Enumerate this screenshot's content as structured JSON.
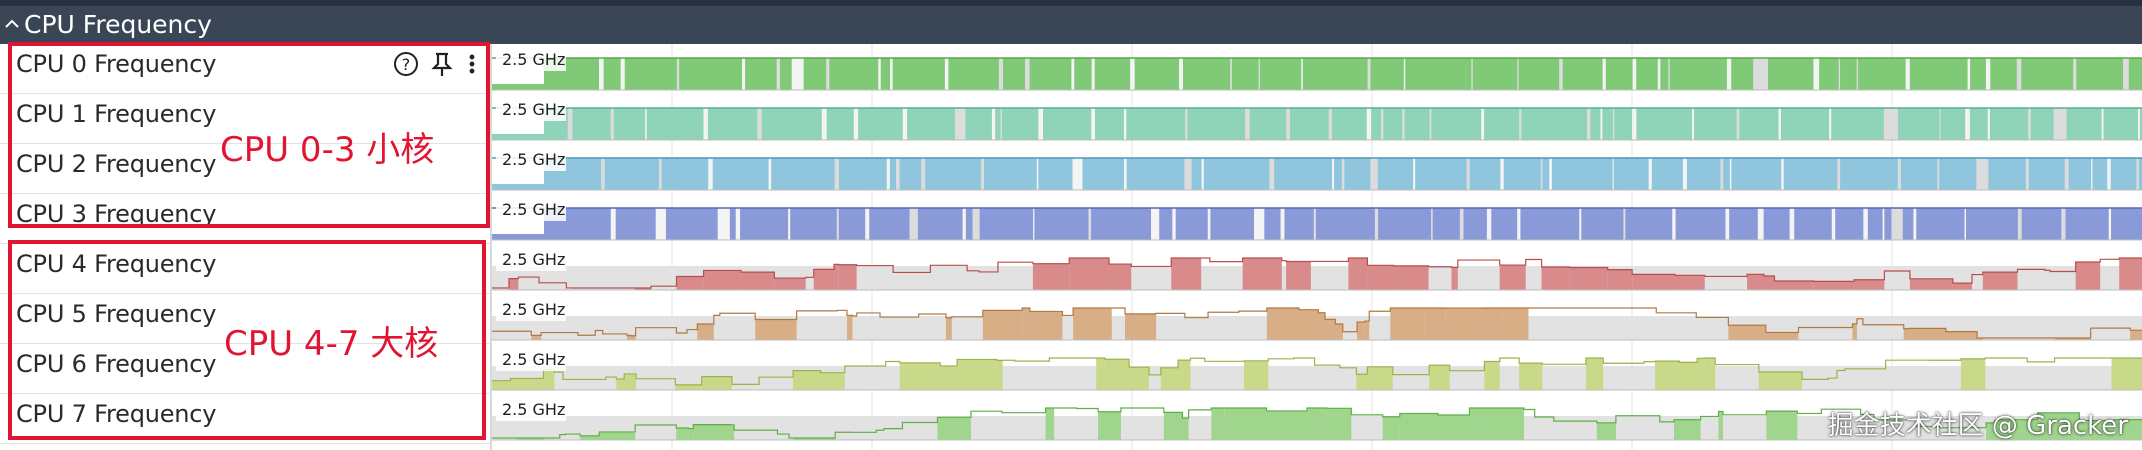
{
  "header": {
    "title": "CPU Frequency",
    "chevron_icon": "chevron-up-icon"
  },
  "tracks": [
    {
      "label": "CPU 0 Frequency",
      "freq": "2.5 GHz",
      "color": "#80c977",
      "line": "#5aa84f",
      "seed": 11,
      "style": "dense"
    },
    {
      "label": "CPU 1 Frequency",
      "freq": "2.5 GHz",
      "color": "#8fd3b8",
      "line": "#56b28f",
      "seed": 23,
      "style": "dense"
    },
    {
      "label": "CPU 2 Frequency",
      "freq": "2.5 GHz",
      "color": "#8fc6de",
      "line": "#4c98bb",
      "seed": 37,
      "style": "dense"
    },
    {
      "label": "CPU 3 Frequency",
      "freq": "2.5 GHz",
      "color": "#8a9ad8",
      "line": "#5468bf",
      "seed": 41,
      "style": "dense"
    },
    {
      "label": "CPU 4 Frequency",
      "freq": "2.5 GHz",
      "color": "#d98b8b",
      "line": "#b84d4d",
      "seed": 53,
      "style": "sparse"
    },
    {
      "label": "CPU 5 Frequency",
      "freq": "2.5 GHz",
      "color": "#d8ae86",
      "line": "#b07a43",
      "seed": 67,
      "style": "sparse"
    },
    {
      "label": "CPU 6 Frequency",
      "freq": "2.5 GHz",
      "color": "#c9d98a",
      "line": "#9cb34a",
      "seed": 79,
      "style": "sparse"
    },
    {
      "label": "CPU 7 Frequency",
      "freq": "2.5 GHz",
      "color": "#9fd58d",
      "line": "#5fae47",
      "seed": 83,
      "style": "sparse"
    }
  ],
  "row_icons": [
    "help-icon",
    "pin-icon",
    "more-vert-icon"
  ],
  "annotations": {
    "little_cores": "CPU 0-3 小核",
    "big_cores": "CPU 4-7 大核",
    "color": "#e11531"
  },
  "watermark": "掘金技术社区 @ Gracker"
}
